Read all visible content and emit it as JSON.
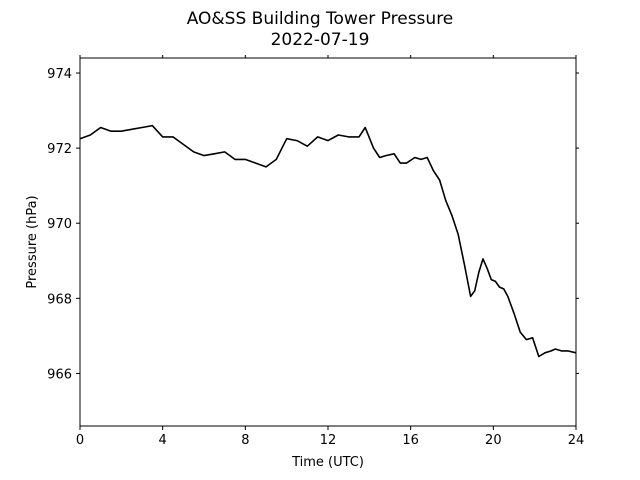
{
  "chart_data": {
    "type": "line",
    "title": "AO&SS Building Tower Pressure",
    "subtitle": "2022-07-19",
    "xlabel": "Time (UTC)",
    "ylabel": "Pressure (hPa)",
    "xlim": [
      0,
      24
    ],
    "ylim": [
      964.6,
      974.4
    ],
    "xticks": [
      0,
      4,
      8,
      12,
      16,
      20,
      24
    ],
    "yticks": [
      966,
      968,
      970,
      972,
      974
    ],
    "grid": false,
    "series": [
      {
        "color": "#000000",
        "x": [
          0,
          0.5,
          1,
          1.5,
          2,
          2.5,
          3,
          3.5,
          4,
          4.5,
          5,
          5.5,
          6,
          6.5,
          7,
          7.5,
          8,
          8.5,
          9,
          9.5,
          10,
          10.5,
          11,
          11.5,
          12,
          12.5,
          13,
          13.5,
          13.8,
          14.2,
          14.5,
          14.8,
          15.2,
          15.5,
          15.8,
          16.2,
          16.5,
          16.8,
          17.1,
          17.4,
          17.7,
          18,
          18.3,
          18.6,
          18.9,
          19.1,
          19.3,
          19.5,
          19.7,
          19.9,
          20.1,
          20.3,
          20.5,
          20.7,
          21,
          21.3,
          21.6,
          21.9,
          22.2,
          22.5,
          22.8,
          23,
          23.3,
          23.6,
          24
        ],
        "values": [
          972.25,
          972.35,
          972.55,
          972.45,
          972.45,
          972.5,
          972.55,
          972.6,
          972.3,
          972.3,
          972.1,
          971.9,
          971.8,
          971.85,
          971.9,
          971.7,
          971.7,
          971.6,
          971.5,
          971.7,
          972.25,
          972.2,
          972.05,
          972.3,
          972.2,
          972.35,
          972.3,
          972.3,
          972.55,
          972.0,
          971.75,
          971.8,
          971.85,
          971.6,
          971.6,
          971.75,
          971.7,
          971.75,
          971.4,
          971.15,
          970.6,
          970.2,
          969.7,
          968.9,
          968.05,
          968.2,
          968.7,
          969.05,
          968.8,
          968.5,
          968.45,
          968.3,
          968.25,
          968.05,
          967.6,
          967.1,
          966.9,
          966.95,
          966.45,
          966.55,
          966.6,
          966.65,
          966.6,
          966.6,
          966.55
        ]
      }
    ]
  }
}
